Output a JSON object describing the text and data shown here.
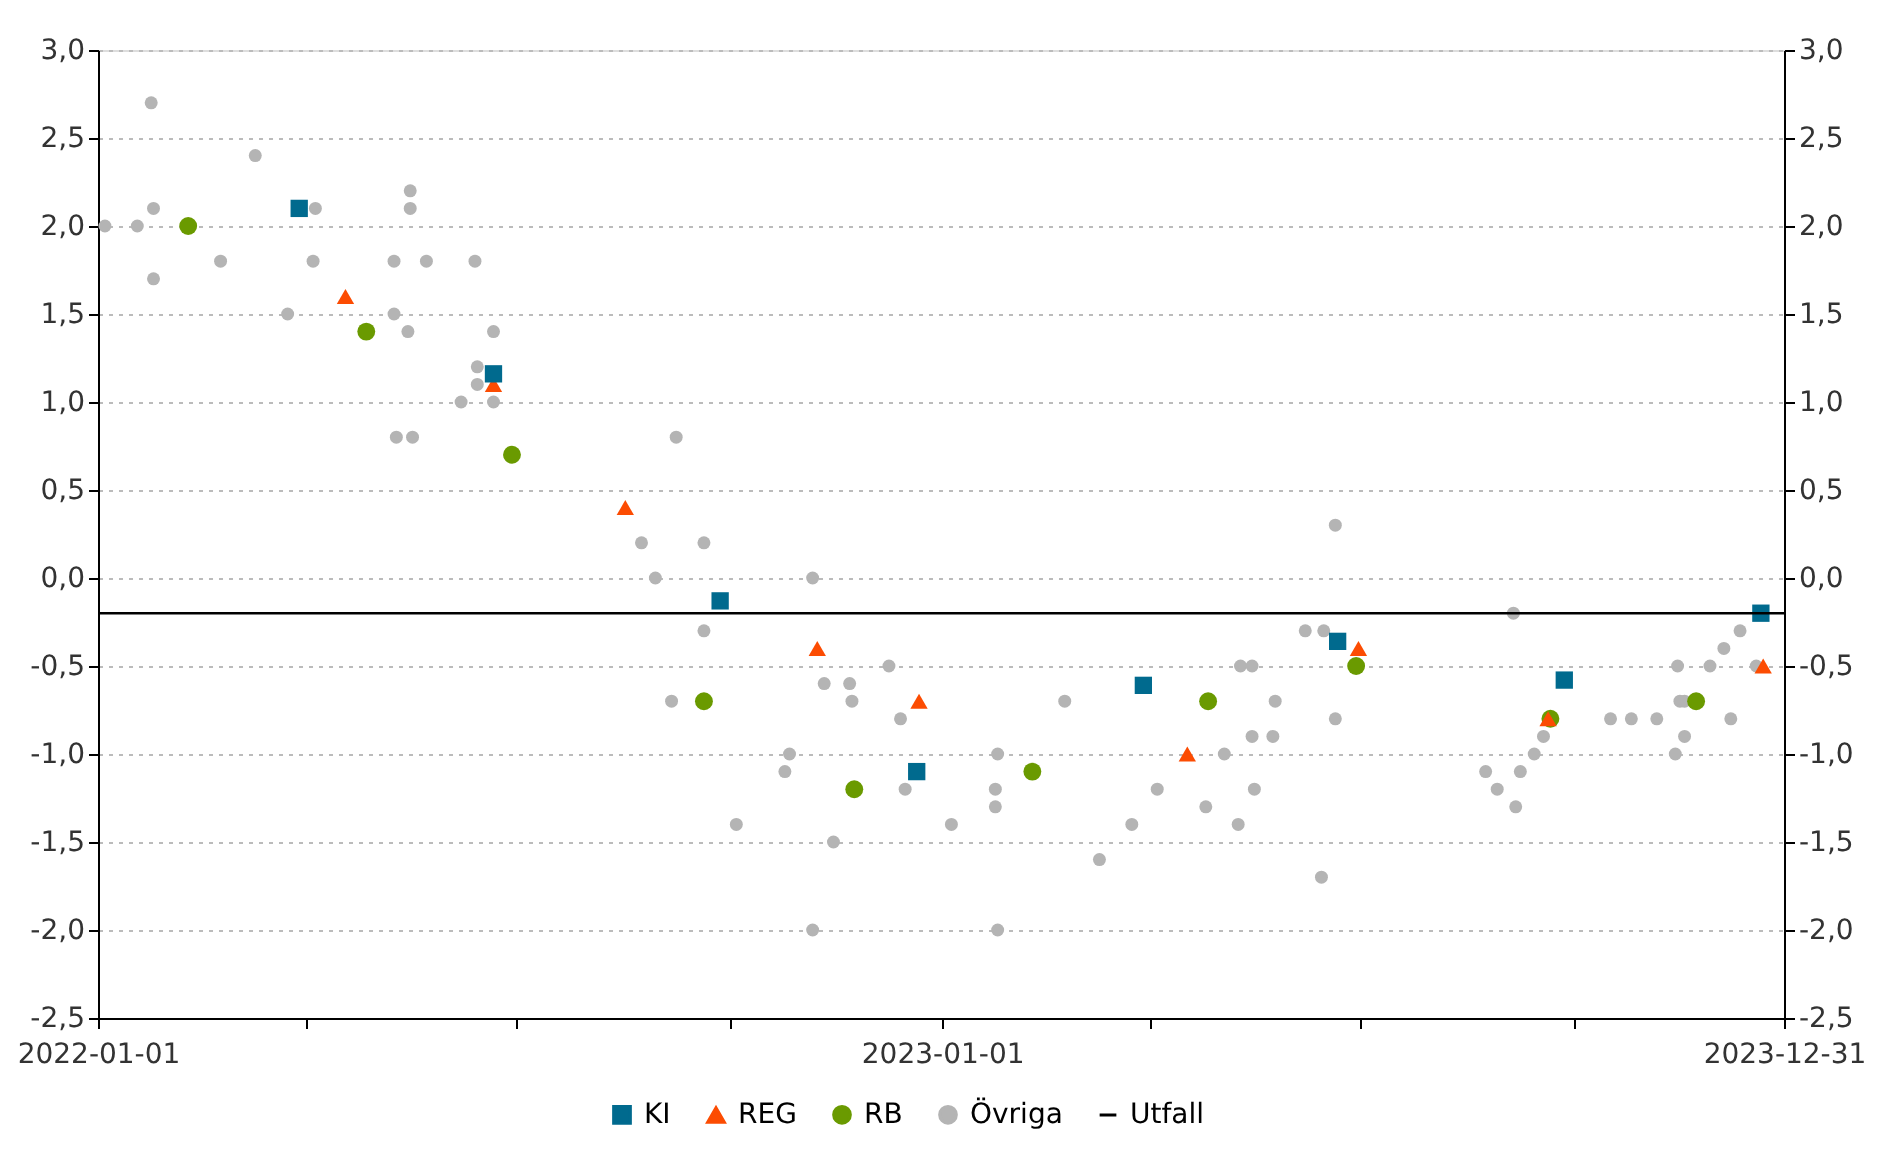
{
  "chart_data": {
    "type": "scatter",
    "xlim": [
      "2022-01-01",
      "2023-12-31"
    ],
    "xticks": [
      {
        "value": "2022-01-01",
        "label": "2022-01-01"
      },
      {
        "value": "2022-04-01",
        "label": null
      },
      {
        "value": "2022-07-01",
        "label": null
      },
      {
        "value": "2022-10-01",
        "label": null
      },
      {
        "value": "2023-01-01",
        "label": "2023-01-01"
      },
      {
        "value": "2023-04-01",
        "label": null
      },
      {
        "value": "2023-07-01",
        "label": null
      },
      {
        "value": "2023-10-01",
        "label": null
      },
      {
        "value": "2023-12-31",
        "label": "2023-12-31"
      }
    ],
    "ylim": [
      -2.5,
      3.0
    ],
    "yticks": [
      {
        "value": -2.5,
        "label": "-2,5"
      },
      {
        "value": -2.0,
        "label": "-2,0"
      },
      {
        "value": -1.5,
        "label": "-1,5"
      },
      {
        "value": -1.0,
        "label": "-1,0"
      },
      {
        "value": -0.5,
        "label": "-0,5"
      },
      {
        "value": 0.0,
        "label": "0,0"
      },
      {
        "value": 0.5,
        "label": "0,5"
      },
      {
        "value": 1.0,
        "label": "1,0"
      },
      {
        "value": 1.5,
        "label": "1,5"
      },
      {
        "value": 2.0,
        "label": "2,0"
      },
      {
        "value": 2.5,
        "label": "2,5"
      },
      {
        "value": 3.0,
        "label": "3,0"
      }
    ],
    "y2lim": [
      -2.5,
      3.0
    ],
    "y2ticks": [
      {
        "value": -2.5,
        "label": "-2,5"
      },
      {
        "value": -2.0,
        "label": "-2,0"
      },
      {
        "value": -1.5,
        "label": "-1,5"
      },
      {
        "value": -1.0,
        "label": "-1,0"
      },
      {
        "value": -0.5,
        "label": "-0,5"
      },
      {
        "value": 0.0,
        "label": "0,0"
      },
      {
        "value": 0.5,
        "label": "0,5"
      },
      {
        "value": 1.0,
        "label": "1,0"
      },
      {
        "value": 1.5,
        "label": "1,5"
      },
      {
        "value": 2.0,
        "label": "2,0"
      },
      {
        "value": 2.5,
        "label": "2,5"
      },
      {
        "value": 3.0,
        "label": "3,0"
      }
    ],
    "grid": "y",
    "legend": "bottom",
    "series": [
      {
        "name": "KI",
        "color": "#006a8e",
        "marker": "square",
        "x": [
          "2022-03-29",
          "2022-06-21",
          "2022-09-27",
          "2022-12-21",
          "2023-03-29",
          "2023-06-21",
          "2023-09-27",
          "2023-12-21"
        ],
        "values": [
          2.1,
          1.16,
          -0.13,
          -1.1,
          -0.61,
          -0.36,
          -0.58,
          -0.2
        ]
      },
      {
        "name": "REG",
        "color": "#fc4c02",
        "marker": "triangle",
        "x": [
          "2022-04-18",
          "2022-06-21",
          "2022-08-17",
          "2022-11-08",
          "2022-12-22",
          "2023-04-17",
          "2023-06-30",
          "2023-09-20",
          "2023-12-22"
        ],
        "values": [
          1.6,
          1.1,
          0.4,
          -0.4,
          -0.7,
          -1.0,
          -0.4,
          -0.8,
          -0.5
        ]
      },
      {
        "name": "RB",
        "color": "#6a9a00",
        "marker": "circle",
        "x": [
          "2022-02-09",
          "2022-04-27",
          "2022-06-29",
          "2022-09-20",
          "2022-11-24",
          "2023-02-09",
          "2023-04-26",
          "2023-06-29",
          "2023-09-21",
          "2023-11-23"
        ],
        "values": [
          2.0,
          1.4,
          0.7,
          -0.7,
          -1.2,
          -1.1,
          -0.7,
          -0.5,
          -0.8,
          -0.7
        ]
      },
      {
        "name": "Övriga",
        "color": "#b4b4b4",
        "marker": "circle",
        "x": [
          "2022-01-04",
          "2022-01-18",
          "2022-01-24",
          "2022-01-25",
          "2022-01-25",
          "2022-02-23",
          "2022-03-10",
          "2022-03-24",
          "2022-04-05",
          "2022-04-04",
          "2022-05-09",
          "2022-05-09",
          "2022-05-10",
          "2022-05-15",
          "2022-05-16",
          "2022-05-16",
          "2022-05-17",
          "2022-05-23",
          "2022-06-07",
          "2022-06-13",
          "2022-06-14",
          "2022-06-14",
          "2022-06-21",
          "2022-06-21",
          "2022-08-24",
          "2022-09-08",
          "2022-08-30",
          "2022-09-20",
          "2022-09-20",
          "2022-09-06",
          "2022-10-04",
          "2022-10-25",
          "2022-10-27",
          "2022-11-06",
          "2022-11-06",
          "2022-11-11",
          "2022-11-15",
          "2022-11-22",
          "2022-11-23",
          "2022-12-09",
          "2022-12-14",
          "2022-12-16",
          "2023-01-05",
          "2023-01-24",
          "2023-01-24",
          "2023-01-25",
          "2023-01-25",
          "2023-02-23",
          "2023-03-10",
          "2023-03-24",
          "2023-04-04",
          "2023-04-25",
          "2023-05-03",
          "2023-05-09",
          "2023-05-10",
          "2023-05-15",
          "2023-05-15",
          "2023-05-16",
          "2023-05-24",
          "2023-05-25",
          "2023-06-07",
          "2023-06-14",
          "2023-06-15",
          "2023-06-20",
          "2023-06-20",
          "2023-08-24",
          "2023-08-29",
          "2023-09-05",
          "2023-09-06",
          "2023-09-08",
          "2023-09-14",
          "2023-09-18",
          "2023-10-17",
          "2023-10-26",
          "2023-11-06",
          "2023-11-14",
          "2023-11-15",
          "2023-11-16",
          "2023-11-18",
          "2023-11-18",
          "2023-11-29",
          "2023-12-05",
          "2023-12-08",
          "2023-12-12",
          "2023-12-19"
        ],
        "values": [
          2.0,
          2.0,
          2.7,
          2.1,
          1.7,
          1.8,
          2.4,
          1.5,
          2.1,
          1.8,
          1.8,
          1.5,
          0.8,
          1.4,
          2.2,
          2.1,
          0.8,
          1.8,
          1.0,
          1.8,
          1.2,
          1.1,
          1.4,
          1.0,
          0.2,
          0.8,
          0.0,
          0.2,
          -0.3,
          -0.7,
          -1.4,
          -1.1,
          -1.0,
          0.0,
          -2.0,
          -0.6,
          -1.5,
          -0.6,
          -0.7,
          -0.5,
          -0.8,
          -1.2,
          -1.4,
          -1.2,
          -1.3,
          -1.0,
          -2.0,
          -0.7,
          -1.6,
          -1.4,
          -1.2,
          -1.3,
          -1.0,
          -1.4,
          -0.5,
          -0.5,
          -0.9,
          -1.2,
          -0.9,
          -0.7,
          -0.3,
          -1.7,
          -0.3,
          0.3,
          -0.8,
          -1.1,
          -1.2,
          -0.2,
          -1.3,
          -1.1,
          -1.0,
          -0.9,
          -0.8,
          -0.8,
          -0.8,
          -1.0,
          -0.5,
          -0.7,
          -0.7,
          -0.9,
          -0.5,
          -0.4,
          -0.8,
          -0.3,
          -0.5
        ]
      },
      {
        "name": "Utfall",
        "color": "#000000",
        "type": "line",
        "line_style": "solid",
        "x": [
          "2022-01-01",
          "2023-12-31"
        ],
        "values": [
          -0.2,
          -0.2
        ]
      }
    ]
  }
}
